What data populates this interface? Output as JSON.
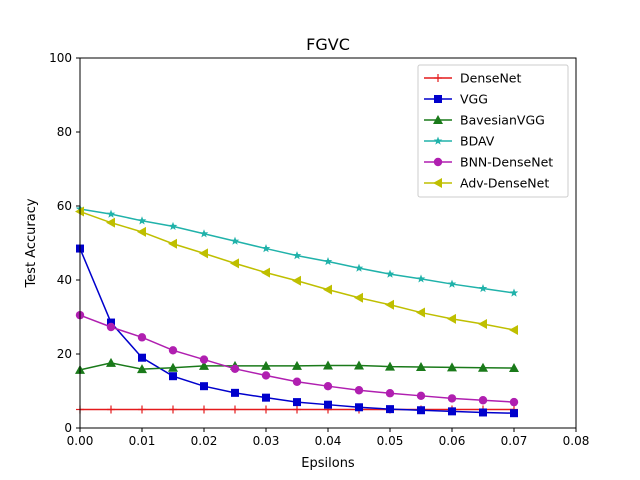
{
  "chart_data": {
    "type": "line",
    "title": "FGVC",
    "xlabel": "Epsilons",
    "ylabel": "Test Accuracy",
    "xlim": [
      0.0,
      0.08
    ],
    "ylim": [
      0,
      100
    ],
    "xticks": [
      0.0,
      0.01,
      0.02,
      0.03,
      0.04,
      0.05,
      0.06,
      0.07,
      0.08
    ],
    "xtick_labels": [
      "0.00",
      "0.01",
      "0.02",
      "0.03",
      "0.04",
      "0.05",
      "0.06",
      "0.07",
      "0.08"
    ],
    "yticks": [
      0,
      20,
      40,
      60,
      80,
      100
    ],
    "ytick_labels": [
      "0",
      "20",
      "40",
      "60",
      "80",
      "100"
    ],
    "grid": false,
    "legend_position": "top-right",
    "x": [
      0.0,
      0.005,
      0.01,
      0.015,
      0.02,
      0.025,
      0.03,
      0.035,
      0.04,
      0.045,
      0.05,
      0.055,
      0.06,
      0.065,
      0.07
    ],
    "series": [
      {
        "name": "DenseNet",
        "color": "#e41a1c",
        "marker": "plus",
        "values": [
          5.0,
          5.0,
          5.0,
          5.0,
          5.0,
          5.0,
          5.0,
          5.0,
          5.0,
          5.0,
          5.0,
          5.0,
          5.0,
          5.0,
          5.0
        ]
      },
      {
        "name": "VGG",
        "color": "#0000cc",
        "marker": "square",
        "values": [
          48.5,
          28.5,
          19.0,
          14.0,
          11.3,
          9.5,
          8.2,
          7.0,
          6.3,
          5.6,
          5.1,
          4.8,
          4.5,
          4.2,
          4.0
        ]
      },
      {
        "name": "BavesianVGG",
        "color": "#1a7a1a",
        "marker": "triangle",
        "values": [
          15.7,
          17.6,
          15.9,
          16.3,
          16.8,
          16.8,
          16.8,
          16.8,
          16.9,
          16.9,
          16.6,
          16.5,
          16.4,
          16.3,
          16.2
        ]
      },
      {
        "name": "BDAV",
        "color": "#20b2aa",
        "marker": "star",
        "values": [
          59.2,
          57.8,
          56.0,
          54.5,
          52.5,
          50.5,
          48.5,
          46.6,
          45.0,
          43.2,
          41.6,
          40.3,
          38.9,
          37.7,
          36.5
        ]
      },
      {
        "name": "BNN-DenseNet",
        "color": "#b01fb0",
        "marker": "circle",
        "values": [
          30.5,
          27.3,
          24.5,
          21.0,
          18.5,
          16.0,
          14.2,
          12.5,
          11.3,
          10.2,
          9.4,
          8.7,
          8.0,
          7.5,
          7.0
        ]
      },
      {
        "name": "Adv-DenseNet",
        "color": "#bfbf00",
        "marker": "triangle-left",
        "values": [
          58.5,
          55.5,
          53.0,
          49.8,
          47.2,
          44.5,
          42.0,
          39.8,
          37.4,
          35.2,
          33.3,
          31.2,
          29.5,
          28.1,
          26.5
        ]
      }
    ]
  }
}
